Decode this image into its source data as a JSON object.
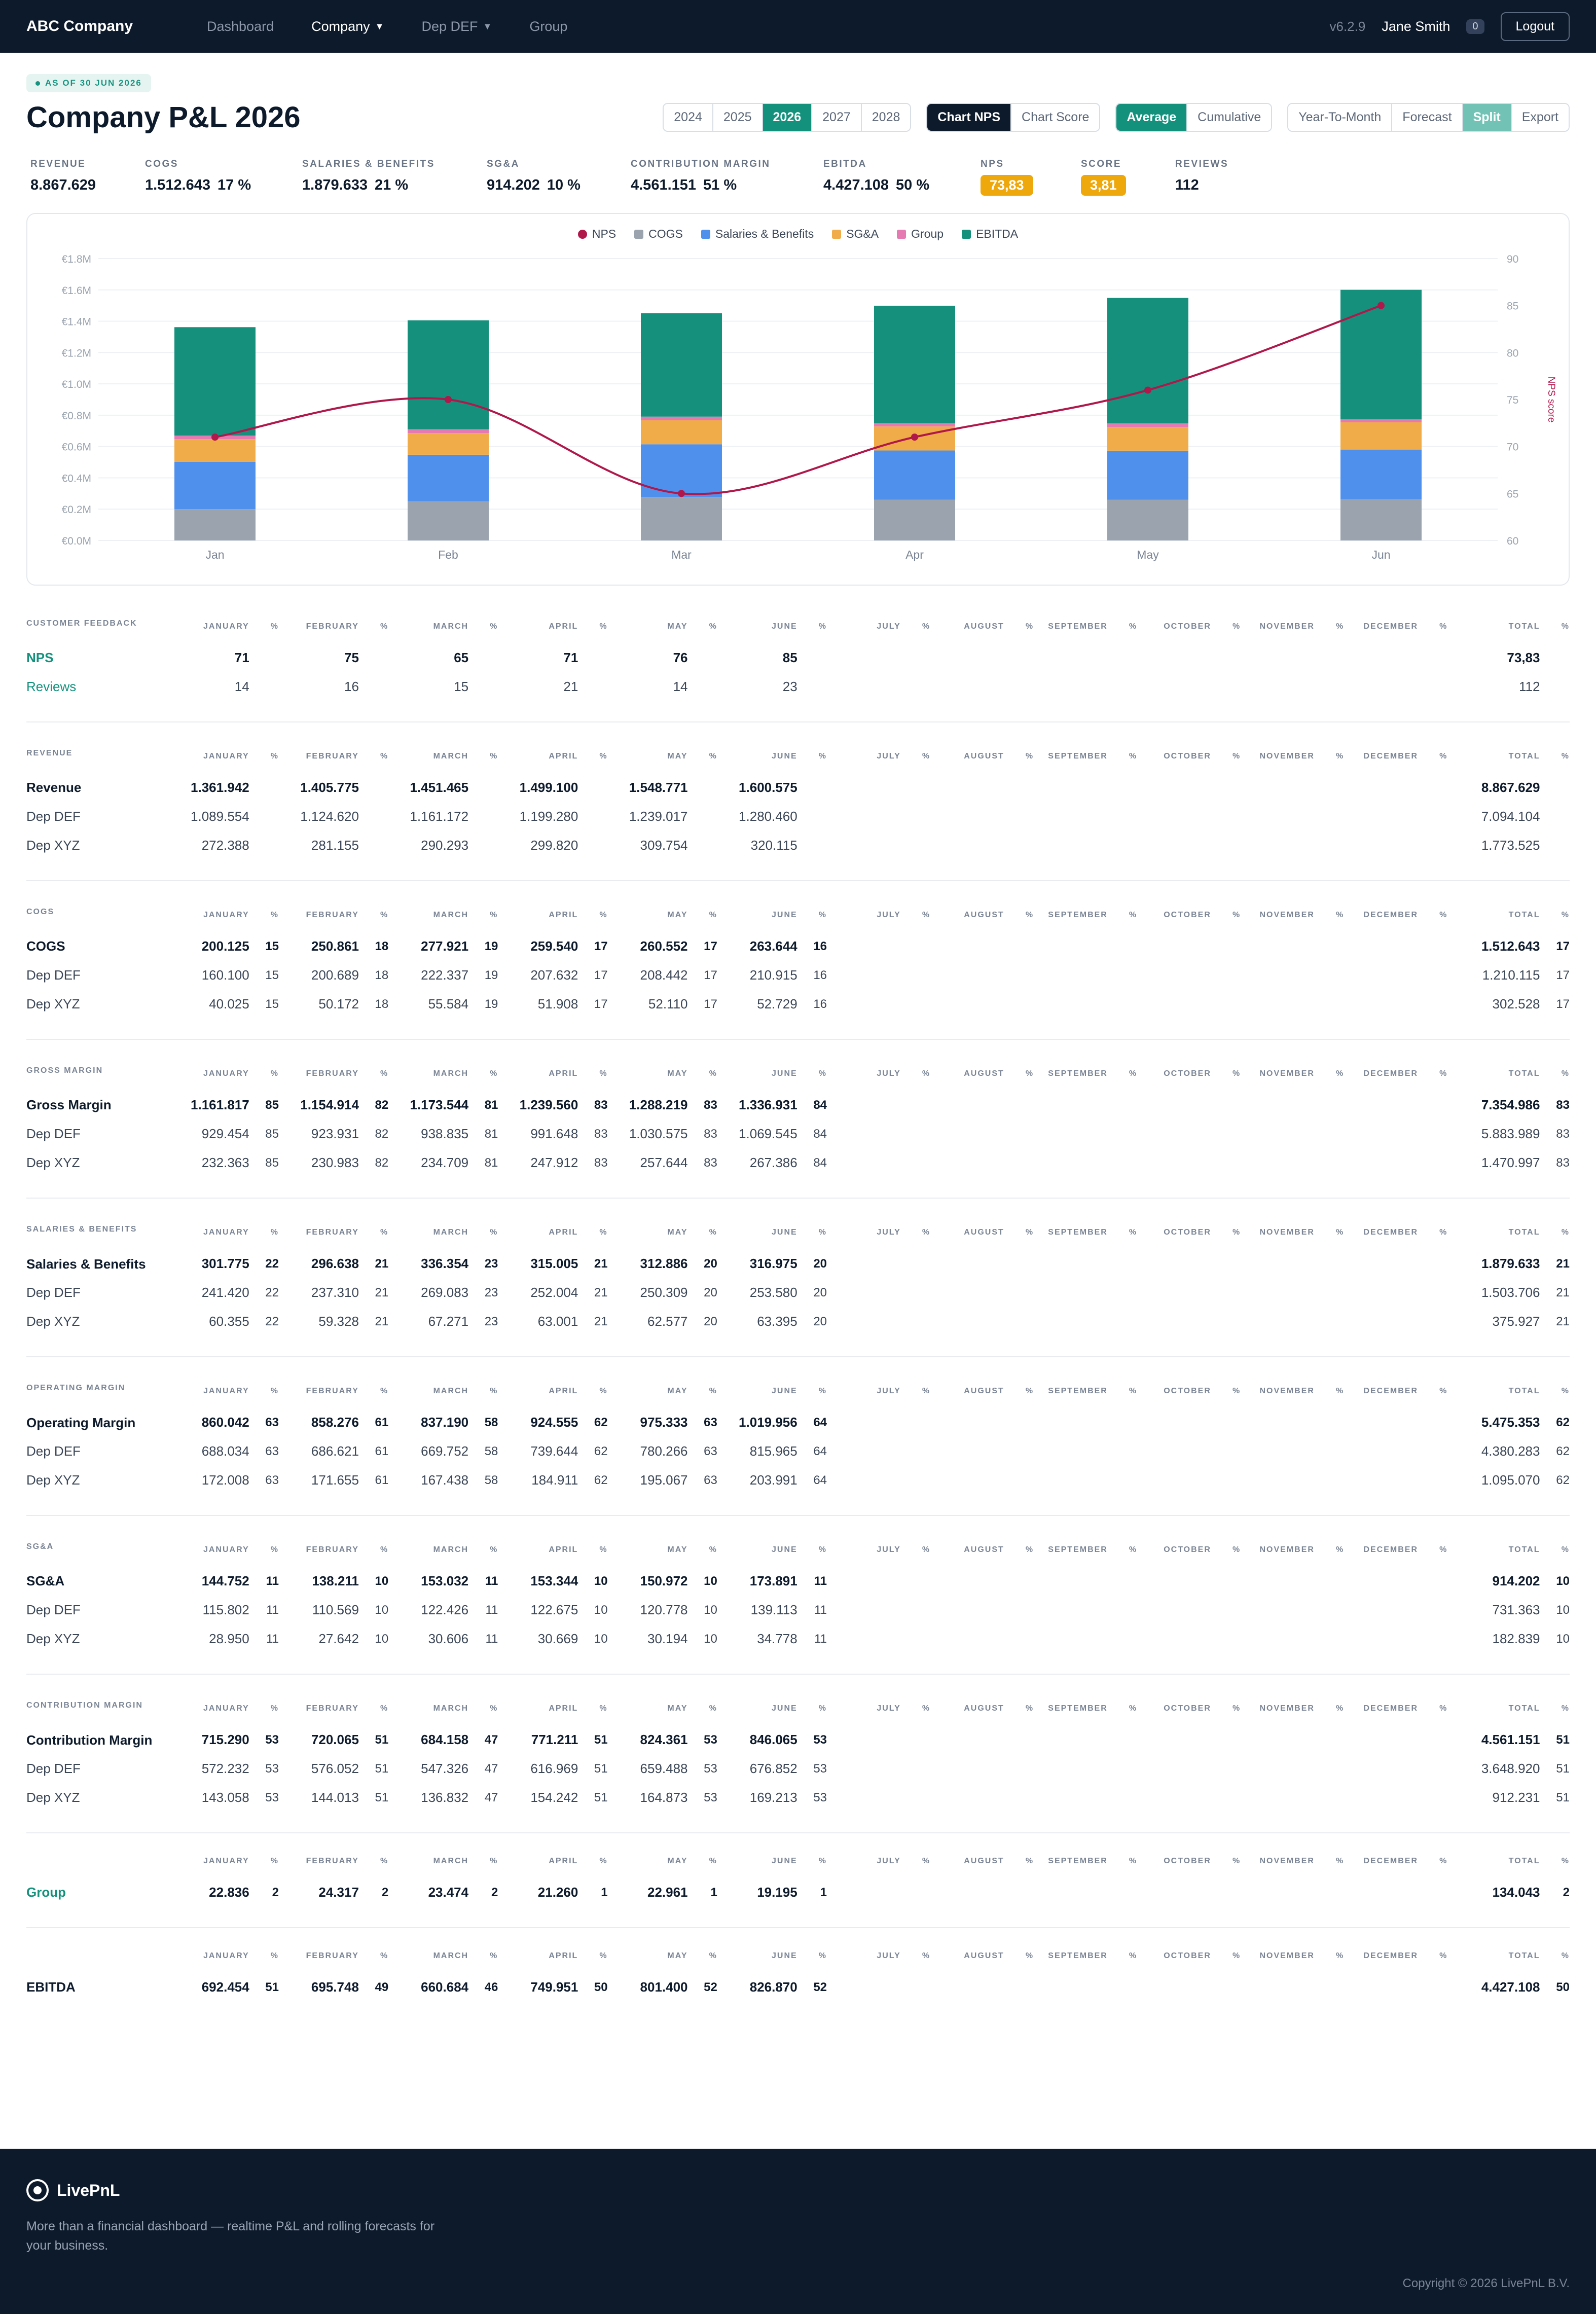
{
  "nav": {
    "brand": "ABC Company",
    "links": [
      "Dashboard",
      "Company",
      "Dep DEF",
      "Group"
    ],
    "version": "v6.2.9",
    "user": "Jane Smith",
    "badge": "0",
    "logout": "Logout"
  },
  "header": {
    "as_of": "AS OF 30 JUN 2026",
    "title": "Company P&L 2026",
    "years": [
      "2024",
      "2025",
      "2026",
      "2027",
      "2028"
    ],
    "chart_modes": [
      "Chart NPS",
      "Chart Score"
    ],
    "agg_modes": [
      "Average",
      "Cumulative"
    ],
    "view_modes": [
      "Year-To-Month",
      "Forecast",
      "Split",
      "Export"
    ]
  },
  "kpis": [
    {
      "label": "REVENUE",
      "value": "8.867.629",
      "pct": ""
    },
    {
      "label": "COGS",
      "value": "1.512.643",
      "pct": "17 %"
    },
    {
      "label": "SALARIES & BENEFITS",
      "value": "1.879.633",
      "pct": "21 %"
    },
    {
      "label": "SG&A",
      "value": "914.202",
      "pct": "10 %"
    },
    {
      "label": "CONTRIBUTION MARGIN",
      "value": "4.561.151",
      "pct": "51 %"
    },
    {
      "label": "EBITDA",
      "value": "4.427.108",
      "pct": "50 %"
    },
    {
      "label": "NPS",
      "value": "73,83",
      "pill": true
    },
    {
      "label": "SCORE",
      "value": "3,81",
      "pill": true
    },
    {
      "label": "REVIEWS",
      "value": "112",
      "pct": ""
    }
  ],
  "colors": {
    "nps": "#b0174a",
    "cogs": "#9aa3ae",
    "salaries": "#4f90ec",
    "sga": "#f0ac48",
    "group": "#e57ab2",
    "ebitda": "#14907c"
  },
  "chart_data": {
    "type": "bar",
    "stacked": true,
    "categories": [
      "Jan",
      "Feb",
      "Mar",
      "Apr",
      "May",
      "Jun"
    ],
    "series": [
      {
        "name": "COGS",
        "values": [
          200125,
          250861,
          277921,
          259540,
          260552,
          263644
        ]
      },
      {
        "name": "Salaries & Benefits",
        "values": [
          301775,
          296638,
          336354,
          315005,
          312886,
          316975
        ]
      },
      {
        "name": "SG&A",
        "values": [
          144752,
          138211,
          153032,
          153344,
          150972,
          173891
        ]
      },
      {
        "name": "Group",
        "values": [
          22836,
          24317,
          23474,
          21260,
          22961,
          19195
        ]
      },
      {
        "name": "EBITDA",
        "values": [
          692454,
          695748,
          660684,
          749951,
          801400,
          826870
        ]
      }
    ],
    "line_series": {
      "name": "NPS",
      "values": [
        71,
        75,
        65,
        71,
        76,
        85
      ]
    },
    "yticks": [
      "€0.0M",
      "€0.2M",
      "€0.4M",
      "€0.6M",
      "€0.8M",
      "€1.0M",
      "€1.2M",
      "€1.4M",
      "€1.6M",
      "€1.8M"
    ],
    "ylim": [
      0,
      1800000
    ],
    "y2ticks": [
      "60",
      "65",
      "70",
      "75",
      "80",
      "85",
      "90"
    ],
    "y2lim": [
      60,
      90
    ],
    "y2label": "NPS score",
    "legend": [
      "NPS",
      "COGS",
      "Salaries & Benefits",
      "SG&A",
      "Group",
      "EBITDA"
    ],
    "legend_position": "top-center",
    "grid": true
  },
  "months": [
    "JANUARY",
    "FEBRUARY",
    "MARCH",
    "APRIL",
    "MAY",
    "JUNE",
    "JULY",
    "AUGUST",
    "SEPTEMBER",
    "OCTOBER",
    "NOVEMBER",
    "DECEMBER",
    "TOTAL"
  ],
  "pct_header": "%",
  "sections": [
    {
      "title": "CUSTOMER FEEDBACK",
      "rows": [
        {
          "label": "NPS",
          "teal": true,
          "main": true,
          "values": [
            "71",
            "75",
            "65",
            "71",
            "76",
            "85"
          ],
          "pcts": [],
          "total": "73,83",
          "total_pct": ""
        },
        {
          "label": "Reviews",
          "teal": true,
          "values": [
            "14",
            "16",
            "15",
            "21",
            "14",
            "23"
          ],
          "pcts": [],
          "total": "112",
          "total_pct": ""
        }
      ]
    },
    {
      "title": "REVENUE",
      "rows": [
        {
          "label": "Revenue",
          "main": true,
          "values": [
            "1.361.942",
            "1.405.775",
            "1.451.465",
            "1.499.100",
            "1.548.771",
            "1.600.575"
          ],
          "pcts": [],
          "total": "8.867.629",
          "total_pct": ""
        },
        {
          "label": "Dep DEF",
          "values": [
            "1.089.554",
            "1.124.620",
            "1.161.172",
            "1.199.280",
            "1.239.017",
            "1.280.460"
          ],
          "pcts": [],
          "total": "7.094.104",
          "total_pct": ""
        },
        {
          "label": "Dep XYZ",
          "values": [
            "272.388",
            "281.155",
            "290.293",
            "299.820",
            "309.754",
            "320.115"
          ],
          "pcts": [],
          "total": "1.773.525",
          "total_pct": ""
        }
      ]
    },
    {
      "title": "COGS",
      "rows": [
        {
          "label": "COGS",
          "main": true,
          "values": [
            "200.125",
            "250.861",
            "277.921",
            "259.540",
            "260.552",
            "263.644"
          ],
          "pcts": [
            "15",
            "18",
            "19",
            "17",
            "17",
            "16"
          ],
          "total": "1.512.643",
          "total_pct": "17"
        },
        {
          "label": "Dep DEF",
          "values": [
            "160.100",
            "200.689",
            "222.337",
            "207.632",
            "208.442",
            "210.915"
          ],
          "pcts": [
            "15",
            "18",
            "19",
            "17",
            "17",
            "16"
          ],
          "total": "1.210.115",
          "total_pct": "17"
        },
        {
          "label": "Dep XYZ",
          "values": [
            "40.025",
            "50.172",
            "55.584",
            "51.908",
            "52.110",
            "52.729"
          ],
          "pcts": [
            "15",
            "18",
            "19",
            "17",
            "17",
            "16"
          ],
          "total": "302.528",
          "total_pct": "17"
        }
      ]
    },
    {
      "title": "GROSS MARGIN",
      "rows": [
        {
          "label": "Gross Margin",
          "main": true,
          "values": [
            "1.161.817",
            "1.154.914",
            "1.173.544",
            "1.239.560",
            "1.288.219",
            "1.336.931"
          ],
          "pcts": [
            "85",
            "82",
            "81",
            "83",
            "83",
            "84"
          ],
          "total": "7.354.986",
          "total_pct": "83"
        },
        {
          "label": "Dep DEF",
          "values": [
            "929.454",
            "923.931",
            "938.835",
            "991.648",
            "1.030.575",
            "1.069.545"
          ],
          "pcts": [
            "85",
            "82",
            "81",
            "83",
            "83",
            "84"
          ],
          "total": "5.883.989",
          "total_pct": "83"
        },
        {
          "label": "Dep XYZ",
          "values": [
            "232.363",
            "230.983",
            "234.709",
            "247.912",
            "257.644",
            "267.386"
          ],
          "pcts": [
            "85",
            "82",
            "81",
            "83",
            "83",
            "84"
          ],
          "total": "1.470.997",
          "total_pct": "83"
        }
      ]
    },
    {
      "title": "SALARIES & BENEFITS",
      "rows": [
        {
          "label": "Salaries & Benefits",
          "main": true,
          "values": [
            "301.775",
            "296.638",
            "336.354",
            "315.005",
            "312.886",
            "316.975"
          ],
          "pcts": [
            "22",
            "21",
            "23",
            "21",
            "20",
            "20"
          ],
          "total": "1.879.633",
          "total_pct": "21"
        },
        {
          "label": "Dep DEF",
          "values": [
            "241.420",
            "237.310",
            "269.083",
            "252.004",
            "250.309",
            "253.580"
          ],
          "pcts": [
            "22",
            "21",
            "23",
            "21",
            "20",
            "20"
          ],
          "total": "1.503.706",
          "total_pct": "21"
        },
        {
          "label": "Dep XYZ",
          "values": [
            "60.355",
            "59.328",
            "67.271",
            "63.001",
            "62.577",
            "63.395"
          ],
          "pcts": [
            "22",
            "21",
            "23",
            "21",
            "20",
            "20"
          ],
          "total": "375.927",
          "total_pct": "21"
        }
      ]
    },
    {
      "title": "OPERATING MARGIN",
      "rows": [
        {
          "label": "Operating Margin",
          "main": true,
          "values": [
            "860.042",
            "858.276",
            "837.190",
            "924.555",
            "975.333",
            "1.019.956"
          ],
          "pcts": [
            "63",
            "61",
            "58",
            "62",
            "63",
            "64"
          ],
          "total": "5.475.353",
          "total_pct": "62"
        },
        {
          "label": "Dep DEF",
          "values": [
            "688.034",
            "686.621",
            "669.752",
            "739.644",
            "780.266",
            "815.965"
          ],
          "pcts": [
            "63",
            "61",
            "58",
            "62",
            "63",
            "64"
          ],
          "total": "4.380.283",
          "total_pct": "62"
        },
        {
          "label": "Dep XYZ",
          "values": [
            "172.008",
            "171.655",
            "167.438",
            "184.911",
            "195.067",
            "203.991"
          ],
          "pcts": [
            "63",
            "61",
            "58",
            "62",
            "63",
            "64"
          ],
          "total": "1.095.070",
          "total_pct": "62"
        }
      ]
    },
    {
      "title": "SG&A",
      "rows": [
        {
          "label": "SG&A",
          "main": true,
          "values": [
            "144.752",
            "138.211",
            "153.032",
            "153.344",
            "150.972",
            "173.891"
          ],
          "pcts": [
            "11",
            "10",
            "11",
            "10",
            "10",
            "11"
          ],
          "total": "914.202",
          "total_pct": "10"
        },
        {
          "label": "Dep DEF",
          "values": [
            "115.802",
            "110.569",
            "122.426",
            "122.675",
            "120.778",
            "139.113"
          ],
          "pcts": [
            "11",
            "10",
            "11",
            "10",
            "10",
            "11"
          ],
          "total": "731.363",
          "total_pct": "10"
        },
        {
          "label": "Dep XYZ",
          "values": [
            "28.950",
            "27.642",
            "30.606",
            "30.669",
            "30.194",
            "34.778"
          ],
          "pcts": [
            "11",
            "10",
            "11",
            "10",
            "10",
            "11"
          ],
          "total": "182.839",
          "total_pct": "10"
        }
      ]
    },
    {
      "title": "CONTRIBUTION MARGIN",
      "rows": [
        {
          "label": "Contribution Margin",
          "main": true,
          "values": [
            "715.290",
            "720.065",
            "684.158",
            "771.211",
            "824.361",
            "846.065"
          ],
          "pcts": [
            "53",
            "51",
            "47",
            "51",
            "53",
            "53"
          ],
          "total": "4.561.151",
          "total_pct": "51"
        },
        {
          "label": "Dep DEF",
          "values": [
            "572.232",
            "576.052",
            "547.326",
            "616.969",
            "659.488",
            "676.852"
          ],
          "pcts": [
            "53",
            "51",
            "47",
            "51",
            "53",
            "53"
          ],
          "total": "3.648.920",
          "total_pct": "51"
        },
        {
          "label": "Dep XYZ",
          "values": [
            "143.058",
            "144.013",
            "136.832",
            "154.242",
            "164.873",
            "169.213"
          ],
          "pcts": [
            "53",
            "51",
            "47",
            "51",
            "53",
            "53"
          ],
          "total": "912.231",
          "total_pct": "51"
        }
      ]
    },
    {
      "title": "",
      "rows": [
        {
          "label": "Group",
          "main": true,
          "teal": true,
          "values": [
            "22.836",
            "24.317",
            "23.474",
            "21.260",
            "22.961",
            "19.195"
          ],
          "pcts": [
            "2",
            "2",
            "2",
            "1",
            "1",
            "1"
          ],
          "total": "134.043",
          "total_pct": "2"
        }
      ]
    },
    {
      "title": "",
      "rows": [
        {
          "label": "EBITDA",
          "main": true,
          "values": [
            "692.454",
            "695.748",
            "660.684",
            "749.951",
            "801.400",
            "826.870"
          ],
          "pcts": [
            "51",
            "49",
            "46",
            "50",
            "52",
            "52"
          ],
          "total": "4.427.108",
          "total_pct": "50"
        }
      ]
    }
  ],
  "footer": {
    "brand": "LivePnL",
    "text": "More than a financial dashboard — realtime P&L and rolling forecasts for your business.",
    "copyright": "Copyright © 2026 LivePnL B.V."
  }
}
